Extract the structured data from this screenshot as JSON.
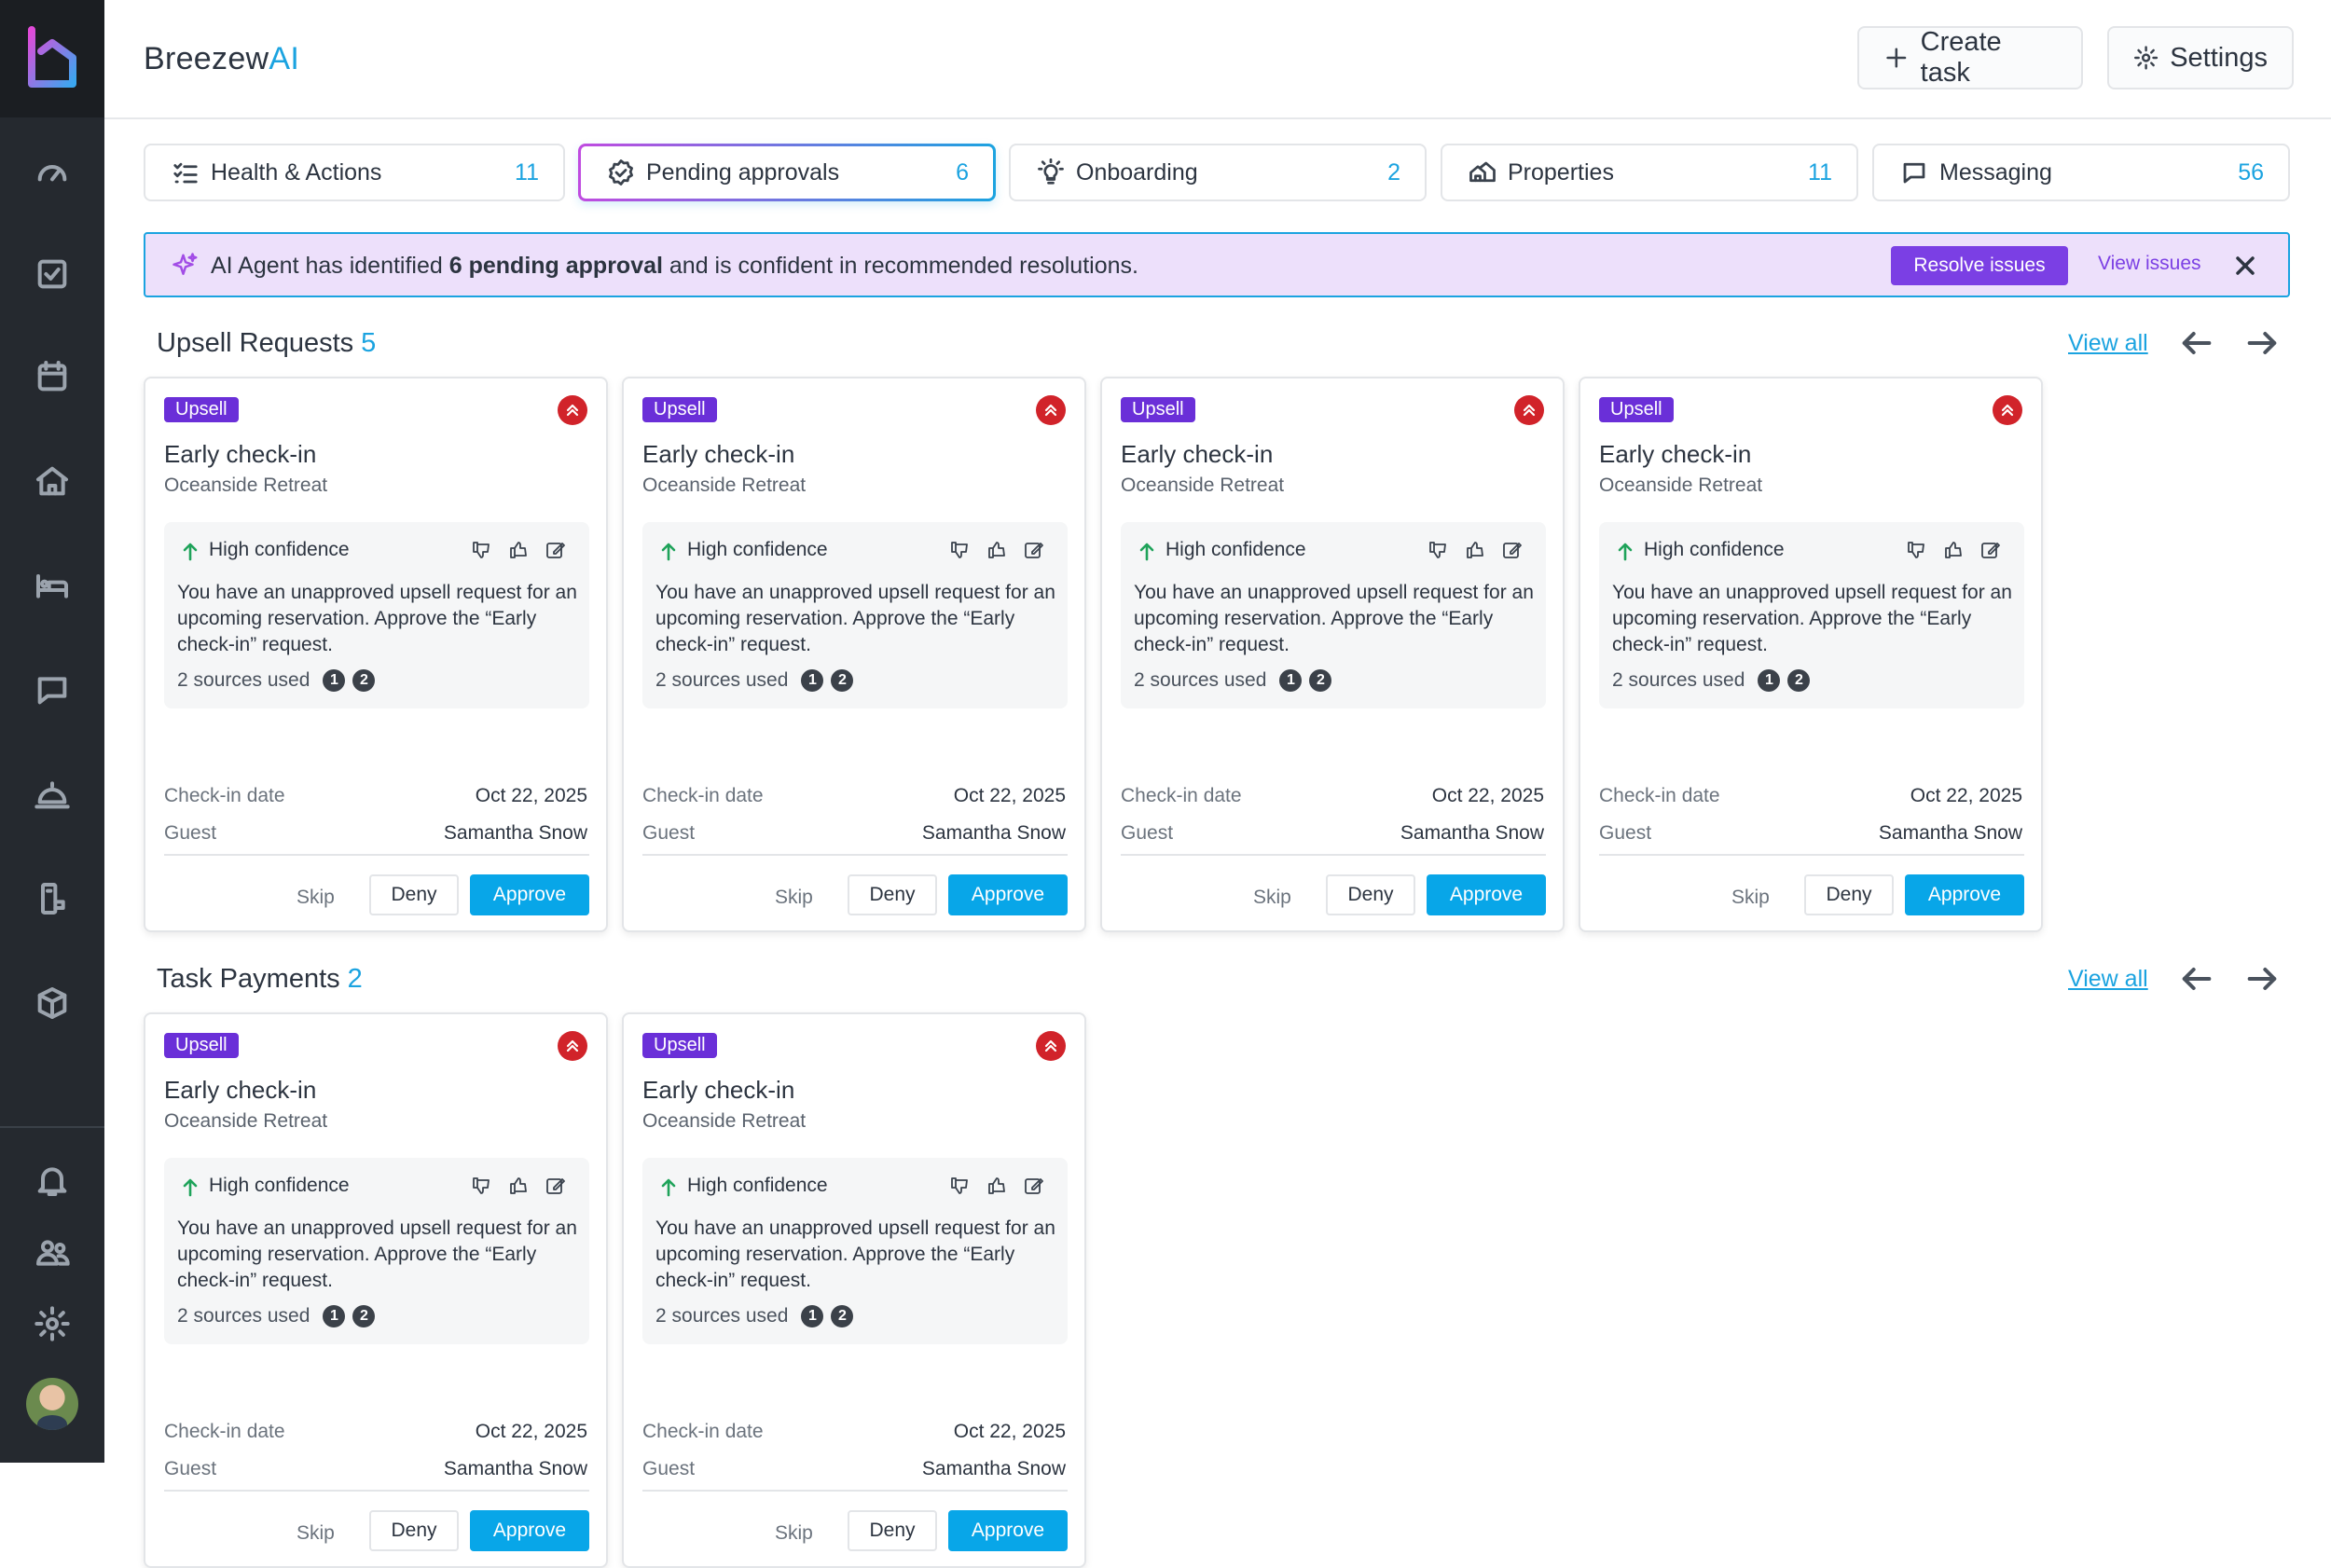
{
  "brand": {
    "prefix": "Breezew",
    "suffix": "AI"
  },
  "header": {
    "create_task_label": "Create task",
    "settings_label": "Settings"
  },
  "tabs": [
    {
      "label": "Health & Actions",
      "count": "11",
      "icon": "checklist-icon"
    },
    {
      "label": "Pending approvals",
      "count": "6",
      "icon": "badge-check-icon"
    },
    {
      "label": "Onboarding",
      "count": "2",
      "icon": "lightbulb-icon"
    },
    {
      "label": "Properties",
      "count": "11",
      "icon": "houses-icon"
    },
    {
      "label": "Messaging",
      "count": "56",
      "icon": "chat-icon"
    }
  ],
  "banner": {
    "text_before": "AI Agent has identified ",
    "text_bold": "6 pending approval",
    "text_after": " and is confident in recommended resolutions.",
    "resolve_label": "Resolve issues",
    "view_label": "View issues"
  },
  "sections": {
    "upsell": {
      "title": "Upsell Requests",
      "count": "5",
      "view_all": "View all"
    },
    "payments": {
      "title": "Task Payments",
      "count": "2",
      "view_all": "View all"
    }
  },
  "card": {
    "badge": "Upsell",
    "title": "Early check-in",
    "property": "Oceanside Retreat",
    "confidence": "High confidence",
    "description": "You have an unapproved upsell request for an upcoming reservation. Approve the “Early check-in” request.",
    "sources_label": "2 sources used",
    "source_1": "1",
    "source_2": "2",
    "checkin_label": "Check-in date",
    "checkin_value": "Oct 22, 2025",
    "guest_label": "Guest",
    "guest_value": "Samantha Snow",
    "skip_label": "Skip",
    "deny_label": "Deny",
    "approve_label": "Approve"
  },
  "colors": {
    "accent": "#1ba3e0",
    "badge": "#6a2fd8",
    "approve": "#08a6e8",
    "priority": "#d1232a",
    "banner_bg": "#ede0fb"
  }
}
